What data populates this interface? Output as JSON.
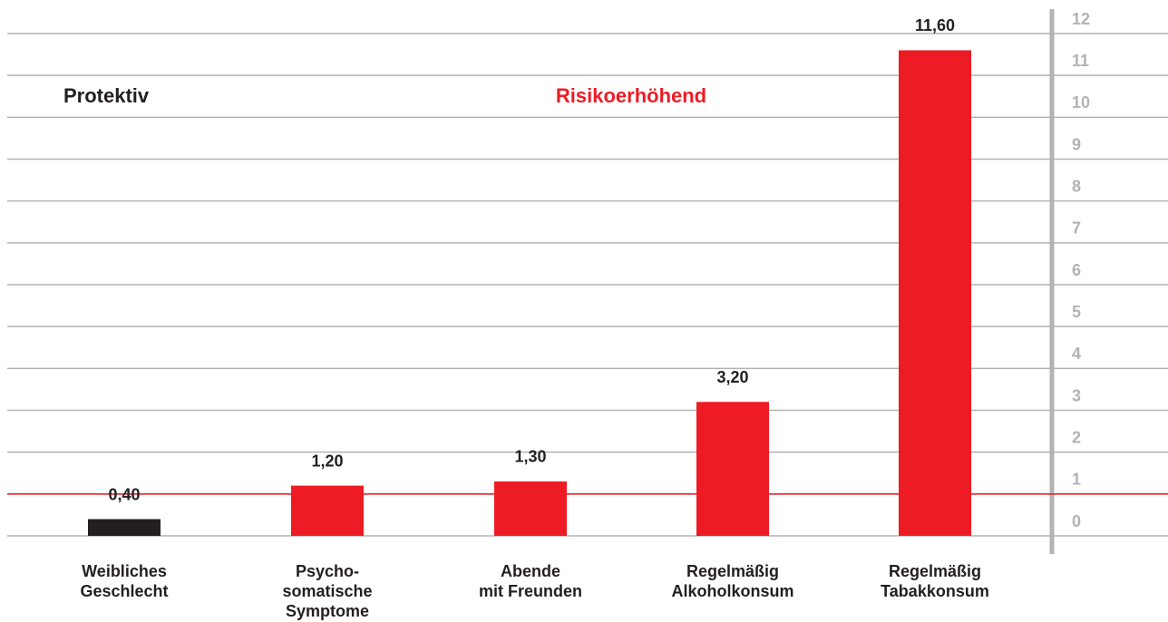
{
  "chart_data": {
    "type": "bar",
    "annotations": [
      {
        "text": "Protektiv",
        "color": "#231f20"
      },
      {
        "text": "Risikoerhöhend",
        "color": "#ed1c24"
      }
    ],
    "categories": [
      "Weibliches\nGeschlecht",
      "Psycho-\nsomatische\nSymptome",
      "Abende\nmit Freunden",
      "Regelmäßig\nAlkoholkonsum",
      "Regelmäßig\nTabakkonsum"
    ],
    "values": [
      0.4,
      1.2,
      1.3,
      3.2,
      11.6
    ],
    "value_labels": [
      "0,40",
      "1,20",
      "1,30",
      "3,20",
      "11,60"
    ],
    "colors": [
      "#231f20",
      "#ed1c24",
      "#ed1c24",
      "#ed1c24",
      "#ed1c24"
    ],
    "reference_line": {
      "value": 1,
      "color": "#ed1c24"
    },
    "ylim": [
      0,
      12
    ],
    "yticks": [
      0,
      1,
      2,
      3,
      4,
      5,
      6,
      7,
      8,
      9,
      10,
      11,
      12
    ],
    "grid": true,
    "y_axis_side": "right"
  }
}
